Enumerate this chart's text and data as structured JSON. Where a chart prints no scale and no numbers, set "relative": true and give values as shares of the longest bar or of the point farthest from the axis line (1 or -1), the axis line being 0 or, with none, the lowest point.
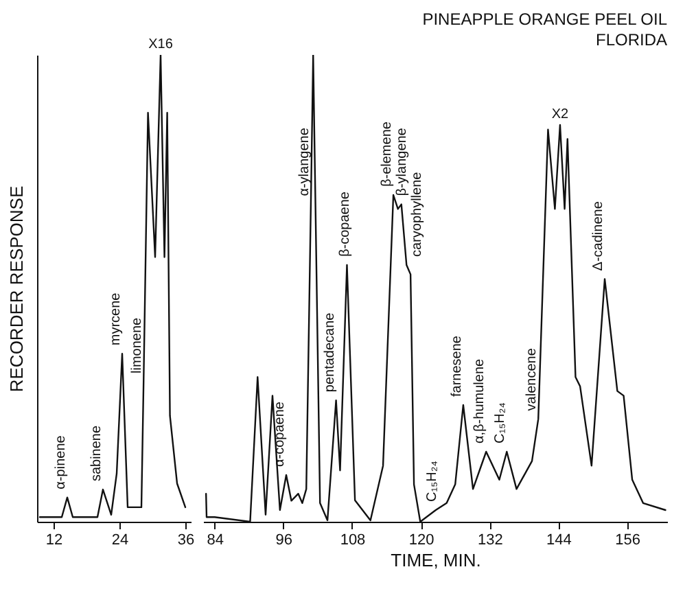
{
  "chart_data": [
    {
      "type": "line",
      "relative": true,
      "ylabel": "RECORDER RESPONSE",
      "xlim": [
        9,
        37
      ],
      "xticks": [
        12,
        24,
        36
      ],
      "grid": false,
      "series": [
        {
          "color": "#111111",
          "x": [
            9.5,
            13.5,
            14.5,
            15.5,
            20,
            21,
            22.5,
            23.5,
            24.5,
            25.5,
            28,
            28.4,
            29.2,
            30.5,
            31.5,
            32.2,
            32.7,
            33.2,
            34.5,
            36
          ],
          "values": [
            0.01,
            0.01,
            0.052,
            0.01,
            0.01,
            0.069,
            0.015,
            0.103,
            0.36,
            0.031,
            0.031,
            0.3,
            0.876,
            0.567,
            1,
            0.567,
            0.876,
            0.227,
            0.082,
            0.031
          ]
        }
      ],
      "annotations": [
        {
          "text": "α-pinene",
          "x": 14.5,
          "y": 0.052
        },
        {
          "text": "sabinene",
          "x": 21,
          "y": 0.069
        },
        {
          "text": "myrcene",
          "x": 24.5,
          "y": 0.36
        },
        {
          "text": "limonene",
          "x": 28.4,
          "y": 0.3
        },
        {
          "text": "X16",
          "x": 31.5,
          "y": 1
        }
      ]
    },
    {
      "type": "line",
      "relative": true,
      "title": "PINEAPPLE ORANGE PEEL OIL",
      "subtitle": "FLORIDA",
      "xlabel": "TIME, MIN.",
      "xlim": [
        82,
        163
      ],
      "xticks": [
        84,
        96,
        108,
        120,
        132,
        144,
        156
      ],
      "grid": false,
      "series": [
        {
          "color": "#111111",
          "x": [
            82.5,
            82.6,
            84,
            90.2,
            91.5,
            92.9,
            94.1,
            95.4,
            96.5,
            97.4,
            98.6,
            99.3,
            100.0,
            100.8,
            101.2,
            102.4,
            103.7,
            105.2,
            105.9,
            107.1,
            108.5,
            111.2,
            113.4,
            115.2,
            116.0,
            116.6,
            117.5,
            118.2,
            118.8,
            119.9,
            122.6,
            124.5,
            126.0,
            127.4,
            129.1,
            131.4,
            133.7,
            135.0,
            136.7,
            139.4,
            140.5,
            142.2,
            143.4,
            144.3,
            145.1,
            145.6,
            147.0,
            147.8,
            149.8,
            152.1,
            154.3,
            155.4,
            156.9,
            158.8,
            162.7
          ],
          "values": [
            0.06,
            0.01,
            0.01,
            0.0,
            0.31,
            0.015,
            0.27,
            0.025,
            0.1,
            0.045,
            0.06,
            0.04,
            0.07,
            0.68,
            1.0,
            0.04,
            0.003,
            0.26,
            0.11,
            0.55,
            0.046,
            0.003,
            0.12,
            0.7,
            0.67,
            0.68,
            0.55,
            0.53,
            0.08,
            0.0,
            0.025,
            0.04,
            0.08,
            0.25,
            0.07,
            0.15,
            0.09,
            0.15,
            0.07,
            0.13,
            0.22,
            0.84,
            0.67,
            0.85,
            0.67,
            0.82,
            0.31,
            0.29,
            0.12,
            0.52,
            0.28,
            0.27,
            0.09,
            0.04,
            0.025
          ]
        }
      ],
      "annotations": [
        {
          "text": "α-copaene",
          "x": 96.5,
          "y": 0.1
        },
        {
          "text": "α-ylangene",
          "x": 100.8,
          "y": 0.68
        },
        {
          "text": "pentadecane",
          "x": 105.2,
          "y": 0.26
        },
        {
          "text": "β-copaene",
          "x": 107.1,
          "y": 0.55
        },
        {
          "text": "β-elemene",
          "x": 115.2,
          "y": 0.7
        },
        {
          "text": "β-ylangene",
          "x": 116.6,
          "y": 0.68
        },
        {
          "text": "caryophyllene",
          "x": 117.5,
          "y": 0.55
        },
        {
          "text": "C₁₅H₂₄",
          "x": 122.6,
          "y": 0.025
        },
        {
          "text": "farnesene",
          "x": 127.4,
          "y": 0.25
        },
        {
          "text": "α,β-humulene",
          "x": 131.4,
          "y": 0.15
        },
        {
          "text": "C₁₅H₂₄",
          "x": 135.0,
          "y": 0.15
        },
        {
          "text": "valencene",
          "x": 140.5,
          "y": 0.22
        },
        {
          "text": "Δ-cadinene",
          "x": 152.1,
          "y": 0.52
        },
        {
          "text": "X2",
          "x": 144.3,
          "y": 0.85
        }
      ]
    }
  ]
}
